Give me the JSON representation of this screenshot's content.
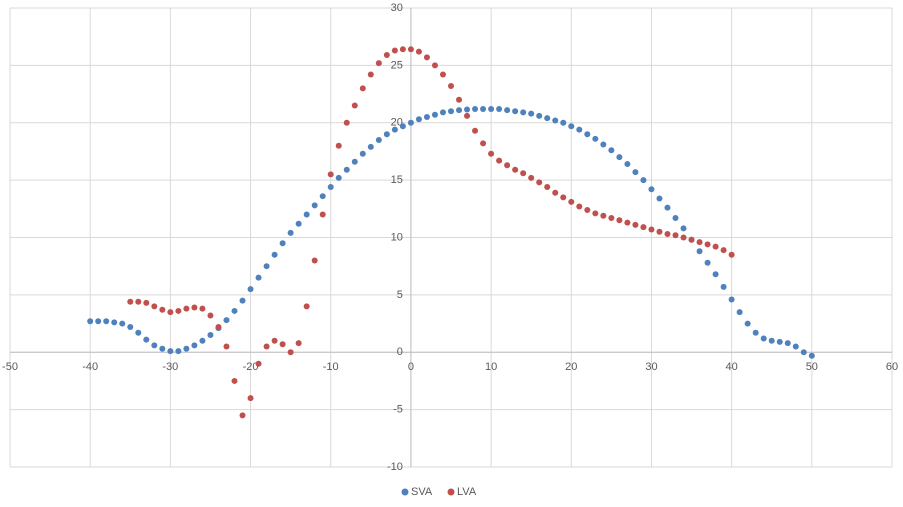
{
  "chart_data": {
    "type": "scatter",
    "xlim": [
      -50,
      60
    ],
    "xticks": [
      -50,
      -40,
      -30,
      -20,
      -10,
      0,
      10,
      20,
      30,
      40,
      50,
      60
    ],
    "ylim": [
      -10,
      30
    ],
    "yticks": [
      -10,
      -5,
      0,
      5,
      10,
      15,
      20,
      25,
      30
    ],
    "grid": true,
    "legend": "bottom",
    "series": [
      {
        "name": "SVA",
        "color": "#4f81bd",
        "x": [
          -40,
          -39,
          -38,
          -37,
          -36,
          -35,
          -34,
          -33,
          -32,
          -31,
          -30,
          -29,
          -28,
          -27,
          -26,
          -25,
          -24,
          -23,
          -22,
          -21,
          -20,
          -19,
          -18,
          -17,
          -16,
          -15,
          -14,
          -13,
          -12,
          -11,
          -10,
          -9,
          -8,
          -7,
          -6,
          -5,
          -4,
          -3,
          -2,
          -1,
          0,
          1,
          2,
          3,
          4,
          5,
          6,
          7,
          8,
          9,
          10,
          11,
          12,
          13,
          14,
          15,
          16,
          17,
          18,
          19,
          20,
          21,
          22,
          23,
          24,
          25,
          26,
          27,
          28,
          29,
          30,
          31,
          32,
          33,
          34,
          35,
          36,
          37,
          38,
          39,
          40,
          41,
          42,
          43,
          44,
          45,
          46,
          47,
          48,
          49,
          50
        ],
        "values": [
          2.7,
          2.7,
          2.7,
          2.6,
          2.5,
          2.2,
          1.7,
          1.1,
          0.6,
          0.3,
          0.1,
          0.1,
          0.3,
          0.6,
          1.0,
          1.5,
          2.1,
          2.8,
          3.6,
          4.5,
          5.5,
          6.5,
          7.5,
          8.5,
          9.5,
          10.4,
          11.2,
          12.0,
          12.8,
          13.6,
          14.4,
          15.2,
          15.9,
          16.6,
          17.3,
          17.9,
          18.5,
          19.0,
          19.4,
          19.7,
          20.0,
          20.3,
          20.5,
          20.7,
          20.9,
          21.0,
          21.1,
          21.15,
          21.2,
          21.2,
          21.2,
          21.2,
          21.1,
          21.0,
          20.9,
          20.8,
          20.6,
          20.4,
          20.2,
          20.0,
          19.7,
          19.4,
          19.0,
          18.6,
          18.1,
          17.6,
          17.0,
          16.4,
          15.7,
          15.0,
          14.2,
          13.4,
          12.6,
          11.7,
          10.8,
          9.8,
          8.8,
          7.8,
          6.8,
          5.7,
          4.6,
          3.5,
          2.5,
          1.7,
          1.2,
          1.0,
          0.9,
          0.8,
          0.5,
          0.0,
          -0.3
        ]
      },
      {
        "name": "LVA",
        "color": "#c0504d",
        "x": [
          -35,
          -34,
          -33,
          -32,
          -31,
          -30,
          -29,
          -28,
          -27,
          -26,
          -25,
          -24,
          -23,
          -22,
          -21,
          -20,
          -19,
          -18,
          -17,
          -16,
          -15,
          -14,
          -13,
          -12,
          -11,
          -10,
          -9,
          -8,
          -7,
          -6,
          -5,
          -4,
          -3,
          -2,
          -1,
          0,
          1,
          2,
          3,
          4,
          5,
          6,
          7,
          8,
          9,
          10,
          11,
          12,
          13,
          14,
          15,
          16,
          17,
          18,
          19,
          20,
          21,
          22,
          23,
          24,
          25,
          26,
          27,
          28,
          29,
          30,
          31,
          32,
          33,
          34,
          35,
          36,
          37,
          38,
          39,
          40
        ],
        "values": [
          4.4,
          4.4,
          4.3,
          4.0,
          3.7,
          3.5,
          3.6,
          3.8,
          3.9,
          3.8,
          3.2,
          2.2,
          0.5,
          -2.5,
          -5.5,
          -4.0,
          -1.0,
          0.5,
          1.0,
          0.7,
          0.0,
          0.8,
          4.0,
          8.0,
          12.0,
          15.5,
          18.0,
          20.0,
          21.5,
          23.0,
          24.2,
          25.2,
          25.9,
          26.3,
          26.4,
          26.4,
          26.2,
          25.7,
          25.0,
          24.2,
          23.2,
          22.0,
          20.6,
          19.3,
          18.2,
          17.3,
          16.7,
          16.3,
          15.9,
          15.6,
          15.2,
          14.8,
          14.4,
          13.9,
          13.5,
          13.1,
          12.7,
          12.4,
          12.1,
          11.9,
          11.7,
          11.5,
          11.3,
          11.1,
          10.9,
          10.7,
          10.5,
          10.3,
          10.2,
          10.0,
          9.8,
          9.6,
          9.4,
          9.2,
          8.9,
          8.5
        ]
      }
    ]
  }
}
